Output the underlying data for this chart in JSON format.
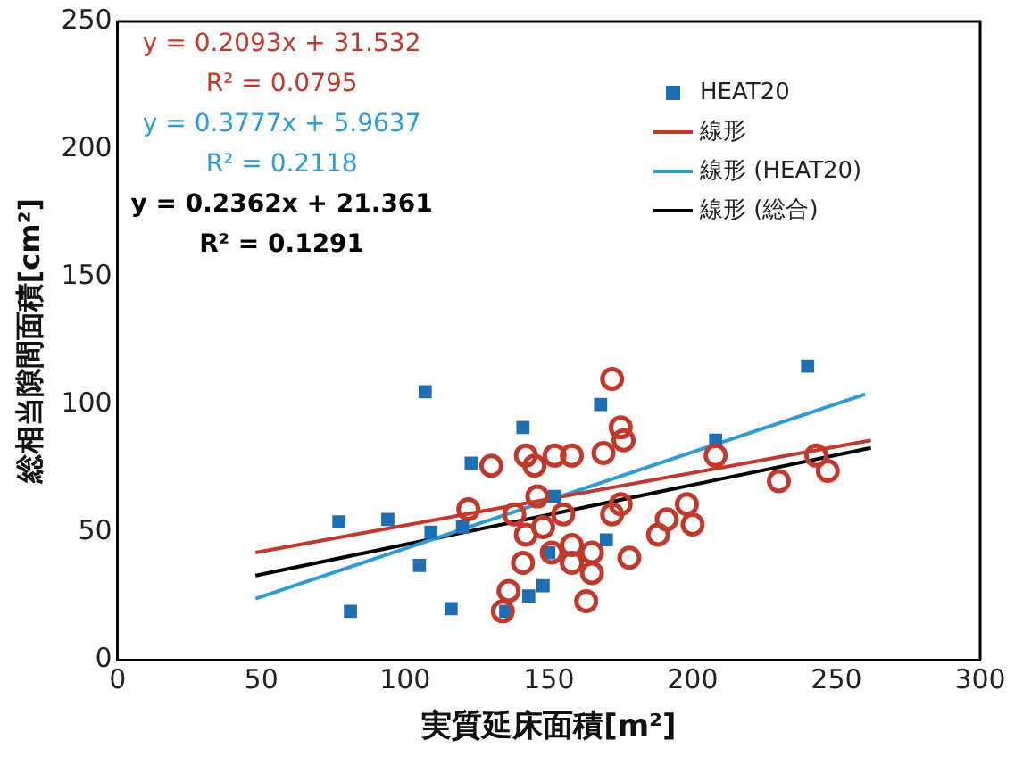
{
  "chart_data": {
    "type": "scatter",
    "xlabel": "実質延床面積[m²]",
    "ylabel": "総相当隙間面積[cm²]",
    "xlim": [
      0,
      300
    ],
    "xticks": [
      0,
      50,
      100,
      150,
      200,
      250,
      300
    ],
    "ylim": [
      0,
      250
    ],
    "yticks": [
      0,
      50,
      100,
      150,
      200,
      250
    ],
    "grid": false,
    "legend": "top right",
    "annotations": [
      "y = 0.2093x + 31.532",
      "R² = 0.0795",
      "y = 0.3777x + 5.9637",
      "R² = 0.2118",
      "y = 0.2362x + 21.361",
      "R² = 0.1291"
    ],
    "series": [
      {
        "marker": "circle",
        "color": "#c0392b",
        "x": [
          130,
          122,
          142,
          145,
          152,
          158,
          146,
          138,
          142,
          148,
          155,
          158,
          165,
          165,
          163,
          172,
          175,
          176,
          172,
          169,
          175,
          188,
          198,
          200,
          208,
          230,
          243,
          247,
          141,
          136,
          134,
          151,
          158,
          191,
          178
        ],
        "values": [
          76,
          59,
          80,
          76,
          80,
          80,
          64,
          57,
          49,
          52,
          57,
          45,
          42,
          34,
          23,
          57,
          91,
          86,
          110,
          81,
          61,
          49,
          61,
          53,
          80,
          70,
          80,
          74,
          38,
          27,
          19,
          42,
          38,
          55,
          40
        ]
      },
      {
        "marker": "square",
        "name": "HEAT20",
        "color": "#1f6fb5",
        "x": [
          77,
          94,
          107,
          123,
          109,
          105,
          81,
          116,
          120,
          141,
          135,
          143,
          148,
          152,
          168,
          170,
          150,
          208,
          240
        ],
        "values": [
          54,
          55,
          105,
          77,
          50,
          37,
          19,
          20,
          52,
          91,
          19,
          25,
          29,
          64,
          100,
          47,
          42,
          86,
          115
        ]
      },
      {
        "type": "line",
        "marker": "none",
        "name": "線形",
        "color": "#c0392b",
        "x": [
          48,
          262
        ],
        "values": [
          42,
          86
        ]
      },
      {
        "type": "line",
        "marker": "none",
        "name": "線形 (HEAT20)",
        "color": "#2e9bd6",
        "x": [
          48,
          260
        ],
        "values": [
          24,
          104
        ]
      },
      {
        "type": "line",
        "marker": "none",
        "name": "線形 (総合)",
        "color": "#000000",
        "x": [
          48,
          262
        ],
        "values": [
          33,
          83
        ]
      }
    ]
  }
}
